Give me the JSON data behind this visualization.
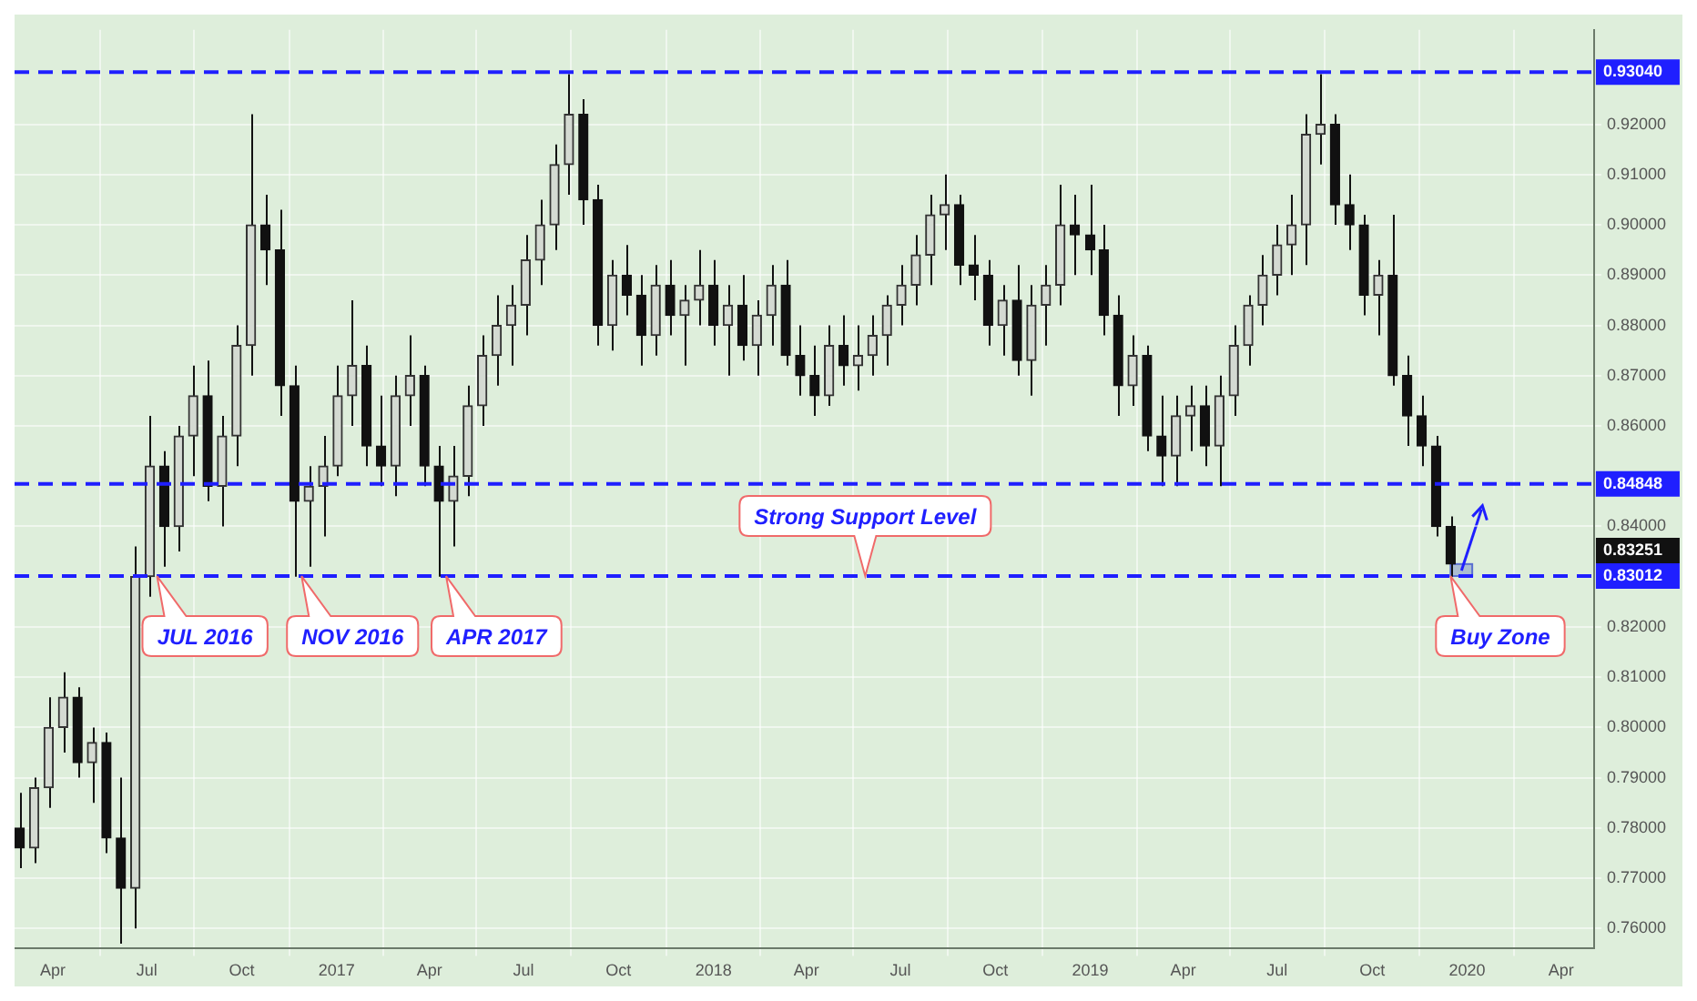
{
  "chart_data": {
    "type": "candlestick",
    "x": [
      "2016-02-29",
      "2016-03-14",
      "2016-03-28",
      "2016-04-11",
      "2016-04-25",
      "2016-05-09",
      "2016-05-23",
      "2016-06-06",
      "2016-06-20",
      "2016-07-04",
      "2016-07-18",
      "2016-08-01",
      "2016-08-15",
      "2016-08-29",
      "2016-09-12",
      "2016-09-26",
      "2016-10-10",
      "2016-10-24",
      "2016-11-07",
      "2016-11-21",
      "2016-12-05",
      "2016-12-19",
      "2017-01-02",
      "2017-01-16",
      "2017-01-30",
      "2017-02-13",
      "2017-02-27",
      "2017-03-13",
      "2017-03-27",
      "2017-04-10",
      "2017-04-24",
      "2017-05-08",
      "2017-05-22",
      "2017-06-05",
      "2017-06-19",
      "2017-07-03",
      "2017-07-17",
      "2017-07-31",
      "2017-08-14",
      "2017-08-28",
      "2017-09-11",
      "2017-09-25",
      "2017-10-09",
      "2017-10-23",
      "2017-11-06",
      "2017-11-20",
      "2017-12-04",
      "2017-12-18",
      "2018-01-01",
      "2018-01-15",
      "2018-01-29",
      "2018-02-12",
      "2018-02-26",
      "2018-03-12",
      "2018-03-26",
      "2018-04-09",
      "2018-04-23",
      "2018-05-07",
      "2018-05-21",
      "2018-06-04",
      "2018-06-18",
      "2018-07-02",
      "2018-07-16",
      "2018-07-30",
      "2018-08-13",
      "2018-08-27",
      "2018-09-10",
      "2018-09-24",
      "2018-10-08",
      "2018-10-22",
      "2018-11-05",
      "2018-11-19",
      "2018-12-03",
      "2018-12-17",
      "2019-01-01",
      "2019-01-14",
      "2019-01-28",
      "2019-02-11",
      "2019-02-25",
      "2019-03-11",
      "2019-03-25",
      "2019-04-08",
      "2019-04-22",
      "2019-05-06",
      "2019-05-20",
      "2019-06-03",
      "2019-06-17",
      "2019-07-01",
      "2019-07-15",
      "2019-07-29",
      "2019-08-12",
      "2019-08-26",
      "2019-09-09",
      "2019-09-23",
      "2019-10-07",
      "2019-10-21",
      "2019-11-04",
      "2019-11-18",
      "2019-12-02",
      "2019-12-16"
    ],
    "ohlc": [
      [
        0.78,
        0.787,
        0.772,
        0.776
      ],
      [
        0.776,
        0.79,
        0.773,
        0.788
      ],
      [
        0.788,
        0.806,
        0.784,
        0.8
      ],
      [
        0.8,
        0.811,
        0.795,
        0.806
      ],
      [
        0.806,
        0.808,
        0.79,
        0.793
      ],
      [
        0.793,
        0.8,
        0.785,
        0.797
      ],
      [
        0.797,
        0.799,
        0.775,
        0.778
      ],
      [
        0.778,
        0.79,
        0.757,
        0.768
      ],
      [
        0.768,
        0.836,
        0.76,
        0.83
      ],
      [
        0.83,
        0.862,
        0.826,
        0.852
      ],
      [
        0.852,
        0.855,
        0.832,
        0.84
      ],
      [
        0.84,
        0.86,
        0.835,
        0.858
      ],
      [
        0.858,
        0.872,
        0.85,
        0.866
      ],
      [
        0.866,
        0.873,
        0.845,
        0.848
      ],
      [
        0.848,
        0.862,
        0.84,
        0.858
      ],
      [
        0.858,
        0.88,
        0.852,
        0.876
      ],
      [
        0.876,
        0.922,
        0.87,
        0.9
      ],
      [
        0.9,
        0.906,
        0.888,
        0.895
      ],
      [
        0.895,
        0.903,
        0.862,
        0.868
      ],
      [
        0.868,
        0.872,
        0.83,
        0.845
      ],
      [
        0.845,
        0.852,
        0.832,
        0.848
      ],
      [
        0.848,
        0.858,
        0.838,
        0.852
      ],
      [
        0.852,
        0.872,
        0.85,
        0.866
      ],
      [
        0.866,
        0.885,
        0.86,
        0.872
      ],
      [
        0.872,
        0.876,
        0.852,
        0.856
      ],
      [
        0.856,
        0.866,
        0.848,
        0.852
      ],
      [
        0.852,
        0.87,
        0.846,
        0.866
      ],
      [
        0.866,
        0.878,
        0.86,
        0.87
      ],
      [
        0.87,
        0.872,
        0.848,
        0.852
      ],
      [
        0.852,
        0.856,
        0.83,
        0.845
      ],
      [
        0.845,
        0.856,
        0.836,
        0.85
      ],
      [
        0.85,
        0.868,
        0.846,
        0.864
      ],
      [
        0.864,
        0.878,
        0.86,
        0.874
      ],
      [
        0.874,
        0.886,
        0.868,
        0.88
      ],
      [
        0.88,
        0.888,
        0.872,
        0.884
      ],
      [
        0.884,
        0.898,
        0.878,
        0.893
      ],
      [
        0.893,
        0.905,
        0.888,
        0.9
      ],
      [
        0.9,
        0.916,
        0.895,
        0.912
      ],
      [
        0.912,
        0.93,
        0.906,
        0.922
      ],
      [
        0.922,
        0.925,
        0.9,
        0.905
      ],
      [
        0.905,
        0.908,
        0.876,
        0.88
      ],
      [
        0.88,
        0.893,
        0.875,
        0.89
      ],
      [
        0.89,
        0.896,
        0.882,
        0.886
      ],
      [
        0.886,
        0.89,
        0.872,
        0.878
      ],
      [
        0.878,
        0.892,
        0.874,
        0.888
      ],
      [
        0.888,
        0.893,
        0.878,
        0.882
      ],
      [
        0.882,
        0.888,
        0.872,
        0.885
      ],
      [
        0.885,
        0.895,
        0.88,
        0.888
      ],
      [
        0.888,
        0.893,
        0.876,
        0.88
      ],
      [
        0.88,
        0.888,
        0.87,
        0.884
      ],
      [
        0.884,
        0.89,
        0.873,
        0.876
      ],
      [
        0.876,
        0.885,
        0.87,
        0.882
      ],
      [
        0.882,
        0.892,
        0.876,
        0.888
      ],
      [
        0.888,
        0.893,
        0.872,
        0.874
      ],
      [
        0.874,
        0.88,
        0.866,
        0.87
      ],
      [
        0.87,
        0.876,
        0.862,
        0.866
      ],
      [
        0.866,
        0.88,
        0.864,
        0.876
      ],
      [
        0.876,
        0.882,
        0.868,
        0.872
      ],
      [
        0.872,
        0.88,
        0.867,
        0.874
      ],
      [
        0.874,
        0.882,
        0.87,
        0.878
      ],
      [
        0.878,
        0.886,
        0.872,
        0.884
      ],
      [
        0.884,
        0.892,
        0.88,
        0.888
      ],
      [
        0.888,
        0.898,
        0.884,
        0.894
      ],
      [
        0.894,
        0.906,
        0.888,
        0.902
      ],
      [
        0.902,
        0.91,
        0.895,
        0.904
      ],
      [
        0.904,
        0.906,
        0.888,
        0.892
      ],
      [
        0.892,
        0.898,
        0.885,
        0.89
      ],
      [
        0.89,
        0.893,
        0.876,
        0.88
      ],
      [
        0.88,
        0.888,
        0.874,
        0.885
      ],
      [
        0.885,
        0.892,
        0.87,
        0.873
      ],
      [
        0.873,
        0.888,
        0.866,
        0.884
      ],
      [
        0.884,
        0.892,
        0.876,
        0.888
      ],
      [
        0.888,
        0.908,
        0.884,
        0.9
      ],
      [
        0.9,
        0.906,
        0.89,
        0.898
      ],
      [
        0.898,
        0.908,
        0.89,
        0.895
      ],
      [
        0.895,
        0.9,
        0.878,
        0.882
      ],
      [
        0.882,
        0.886,
        0.862,
        0.868
      ],
      [
        0.868,
        0.878,
        0.864,
        0.874
      ],
      [
        0.874,
        0.876,
        0.855,
        0.858
      ],
      [
        0.858,
        0.866,
        0.848,
        0.854
      ],
      [
        0.854,
        0.866,
        0.848,
        0.862
      ],
      [
        0.862,
        0.868,
        0.855,
        0.864
      ],
      [
        0.864,
        0.868,
        0.852,
        0.856
      ],
      [
        0.856,
        0.87,
        0.848,
        0.866
      ],
      [
        0.866,
        0.88,
        0.862,
        0.876
      ],
      [
        0.876,
        0.886,
        0.872,
        0.884
      ],
      [
        0.884,
        0.894,
        0.88,
        0.89
      ],
      [
        0.89,
        0.9,
        0.886,
        0.896
      ],
      [
        0.896,
        0.906,
        0.89,
        0.9
      ],
      [
        0.9,
        0.922,
        0.892,
        0.918
      ],
      [
        0.918,
        0.93,
        0.912,
        0.92
      ],
      [
        0.92,
        0.922,
        0.9,
        0.904
      ],
      [
        0.904,
        0.91,
        0.895,
        0.9
      ],
      [
        0.9,
        0.902,
        0.882,
        0.886
      ],
      [
        0.886,
        0.893,
        0.878,
        0.89
      ],
      [
        0.89,
        0.902,
        0.868,
        0.87
      ],
      [
        0.87,
        0.874,
        0.856,
        0.862
      ],
      [
        0.862,
        0.866,
        0.852,
        0.856
      ],
      [
        0.856,
        0.858,
        0.838,
        0.84
      ],
      [
        0.84,
        0.842,
        0.83,
        0.83251
      ]
    ],
    "xlim": [
      "2016-02-24",
      "2020-05-03"
    ],
    "xticks": [
      {
        "value": "2016-04-01",
        "label": "Apr"
      },
      {
        "value": "2016-07-01",
        "label": "Jul"
      },
      {
        "value": "2016-10-01",
        "label": "Oct"
      },
      {
        "value": "2017-01-01",
        "label": "2017"
      },
      {
        "value": "2017-04-01",
        "label": "Apr"
      },
      {
        "value": "2017-07-01",
        "label": "Jul"
      },
      {
        "value": "2017-10-01",
        "label": "Oct"
      },
      {
        "value": "2018-01-01",
        "label": "2018"
      },
      {
        "value": "2018-04-01",
        "label": "Apr"
      },
      {
        "value": "2018-07-01",
        "label": "Jul"
      },
      {
        "value": "2018-10-01",
        "label": "Oct"
      },
      {
        "value": "2019-01-01",
        "label": "2019"
      },
      {
        "value": "2019-04-01",
        "label": "Apr"
      },
      {
        "value": "2019-07-01",
        "label": "Jul"
      },
      {
        "value": "2019-10-01",
        "label": "Oct"
      },
      {
        "value": "2020-01-01",
        "label": "2020"
      },
      {
        "value": "2020-04-01",
        "label": "Apr"
      }
    ],
    "ylim": [
      0.756,
      0.9388
    ],
    "yticks": [
      {
        "value": 0.76,
        "label": "0.76000"
      },
      {
        "value": 0.77,
        "label": "0.77000"
      },
      {
        "value": 0.78,
        "label": "0.78000"
      },
      {
        "value": 0.79,
        "label": "0.79000"
      },
      {
        "value": 0.8,
        "label": "0.80000"
      },
      {
        "value": 0.81,
        "label": "0.81000"
      },
      {
        "value": 0.82,
        "label": "0.82000"
      },
      {
        "value": 0.84,
        "label": "0.84000"
      },
      {
        "value": 0.86,
        "label": "0.86000"
      },
      {
        "value": 0.87,
        "label": "0.87000"
      },
      {
        "value": 0.88,
        "label": "0.88000"
      },
      {
        "value": 0.89,
        "label": "0.89000"
      },
      {
        "value": 0.9,
        "label": "0.90000"
      },
      {
        "value": 0.91,
        "label": "0.91000"
      },
      {
        "value": 0.92,
        "label": "0.92000"
      }
    ],
    "grid": true,
    "ref_lines": [
      {
        "axis": "y",
        "value": 0.9304,
        "label": "0.93040",
        "color": "#1f1fff",
        "line_style": "dashed"
      },
      {
        "axis": "y",
        "value": 0.84848,
        "label": "0.84848",
        "color": "#1f1fff",
        "line_style": "dashed"
      },
      {
        "axis": "y",
        "value": 0.83012,
        "label": "0.83012",
        "color": "#1f1fff",
        "line_style": "dashed"
      }
    ],
    "annotations": [
      {
        "text": "JUL 2016",
        "x": "2016-07-11",
        "y": 0.83012
      },
      {
        "text": "NOV 2016",
        "x": "2016-11-28",
        "y": 0.83012
      },
      {
        "text": "APR 2017",
        "x": "2017-04-17",
        "y": 0.83012
      },
      {
        "text": "Strong Support Level",
        "x": "2018-05-28",
        "y": 0.83012
      },
      {
        "text": "Buy Zone",
        "x": "2019-12-16",
        "y": 0.83012
      },
      "0.83251"
    ]
  }
}
